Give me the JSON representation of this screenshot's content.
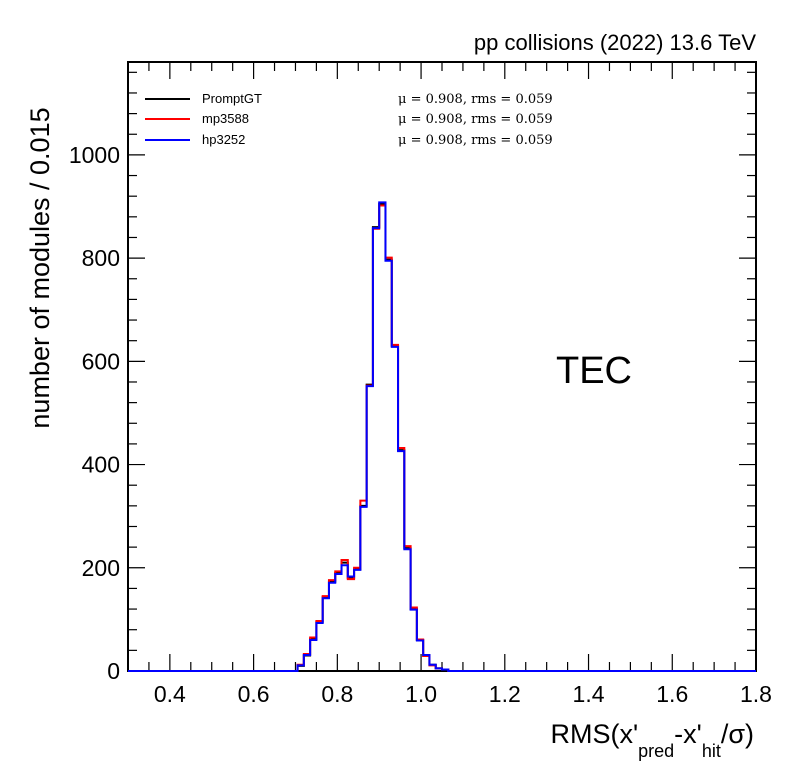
{
  "chart_data": {
    "type": "histogram",
    "header": "pp collisions (2022) 13.6 TeV",
    "region_label": "TEC",
    "ylabel": "number of modules / 0.015",
    "xlabel": "RMS(x'pred-x'hit/σ)",
    "xlabel_parts": {
      "base": "RMS(x'",
      "sub1": "pred",
      "mid": "-x'",
      "sub2": "hit",
      "tail": "/σ)"
    },
    "xlim": [
      0.3,
      1.8
    ],
    "ylim": [
      0,
      1180
    ],
    "x_ticks": [
      "0.4",
      "0.6",
      "0.8",
      "1.0",
      "1.2",
      "1.4",
      "1.6",
      "1.8"
    ],
    "x_tick_values": [
      0.4,
      0.6,
      0.8,
      1.0,
      1.2,
      1.4,
      1.6,
      1.8
    ],
    "y_ticks": [
      "0",
      "200",
      "400",
      "600",
      "800",
      "1000"
    ],
    "y_tick_values": [
      0,
      200,
      400,
      600,
      800,
      1000
    ],
    "bin_width": 0.015,
    "bin_edges_start": 0.705,
    "series": [
      {
        "name": "PromptGT",
        "color": "#000000",
        "stat": "μ = 0.908,  rms = 0.059",
        "values": [
          10,
          30,
          62,
          95,
          143,
          173,
          190,
          210,
          180,
          197,
          320,
          555,
          860,
          905,
          797,
          630,
          428,
          238,
          120,
          60,
          30,
          12,
          5,
          3
        ]
      },
      {
        "name": "mp3588",
        "color": "#ff0000",
        "stat": "μ = 0.908,  rms = 0.059",
        "values": [
          12,
          33,
          65,
          97,
          145,
          176,
          193,
          215,
          178,
          200,
          330,
          553,
          857,
          902,
          801,
          632,
          432,
          242,
          123,
          61,
          29,
          11,
          5,
          3
        ]
      },
      {
        "name": "hp3252",
        "color": "#0000ff",
        "stat": "μ = 0.908,  rms = 0.059",
        "values": [
          11,
          31,
          60,
          93,
          141,
          171,
          188,
          205,
          183,
          196,
          318,
          552,
          858,
          908,
          795,
          628,
          426,
          236,
          119,
          59,
          31,
          12,
          5,
          3
        ]
      }
    ]
  }
}
